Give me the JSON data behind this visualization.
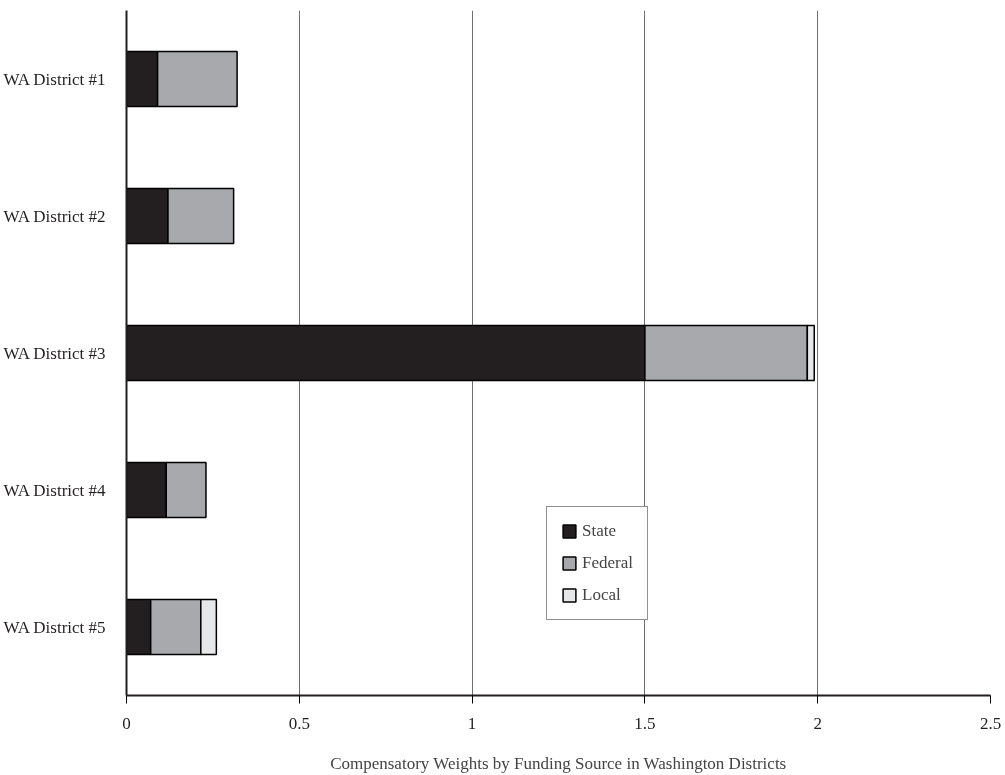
{
  "chart_data": {
    "type": "bar",
    "orientation": "horizontal",
    "stacked": true,
    "xlabel": "Compensatory Weights by Funding Source in Washington Districts",
    "categories": [
      "WA District #1",
      "WA District #2",
      "WA District #3",
      "WA District #4",
      "WA District #5"
    ],
    "series": [
      {
        "name": "State",
        "color": "#231f20",
        "values": [
          0.09,
          0.12,
          1.5,
          0.115,
          0.07
        ]
      },
      {
        "name": "Federal",
        "color": "#a7a9ac",
        "values": [
          0.23,
          0.19,
          0.47,
          0.115,
          0.145
        ]
      },
      {
        "name": "Local",
        "color": "#e6e7e8",
        "values": [
          null,
          null,
          0.02,
          null,
          0.045
        ]
      }
    ],
    "xlim": [
      0,
      2.5
    ],
    "xticks": [
      0,
      0.5,
      1,
      1.5,
      2,
      2.5
    ],
    "grid": "x",
    "legend": "bottom right"
  }
}
